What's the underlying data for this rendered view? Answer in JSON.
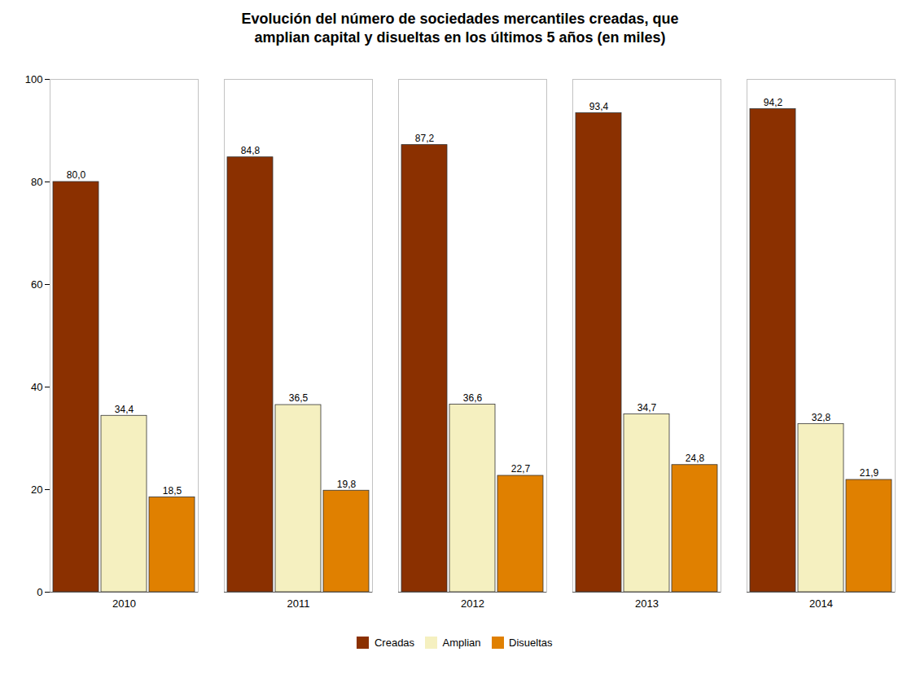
{
  "chart_data": {
    "type": "bar",
    "title": "Evolución del número de sociedades mercantiles creadas, que\namplian capital  y disueltas en los últimos 5 años (en miles)",
    "categories": [
      "2010",
      "2011",
      "2012",
      "2013",
      "2014"
    ],
    "series": [
      {
        "name": "Creadas",
        "color": "#8B3000",
        "values": [
          80.0,
          84.8,
          87.2,
          93.4,
          94.2
        ],
        "value_labels": [
          "80,0",
          "84,8",
          "87,2",
          "93,4",
          "94,2"
        ]
      },
      {
        "name": "Amplian",
        "color": "#F5F0C0",
        "values": [
          34.4,
          36.5,
          36.6,
          34.7,
          32.8
        ],
        "value_labels": [
          "34,4",
          "36,5",
          "36,6",
          "34,7",
          "32,8"
        ]
      },
      {
        "name": "Disueltas",
        "color": "#E08000",
        "values": [
          18.5,
          19.8,
          22.7,
          24.8,
          21.9
        ],
        "value_labels": [
          "18,5",
          "19,8",
          "22,7",
          "24,8",
          "21,9"
        ]
      }
    ],
    "ylim": [
      0,
      100
    ],
    "yticks": [
      0,
      20,
      40,
      60,
      80,
      100
    ],
    "grid": false,
    "legend": "bottom",
    "data_labels": true
  }
}
